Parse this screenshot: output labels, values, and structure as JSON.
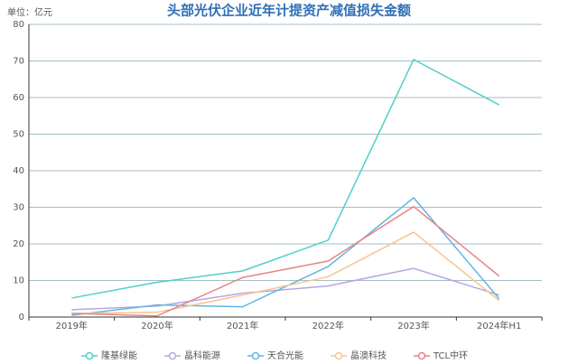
{
  "chart_data": {
    "type": "line",
    "title": "头部光伏企业近年计提资产减值损失金额",
    "y_axis_label": "单位：亿元",
    "categories": [
      "2019年",
      "2020年",
      "2021年",
      "2022年",
      "2023年",
      "2024年H1"
    ],
    "series": [
      {
        "name": "隆基绿能",
        "color": "#4fcfca",
        "values": [
          5.2,
          9.5,
          12.6,
          21,
          70.4,
          58
        ]
      },
      {
        "name": "晶科能源",
        "color": "#b7a6e0",
        "values": [
          2,
          3,
          6.5,
          8.5,
          13.3,
          6
        ]
      },
      {
        "name": "天合光能",
        "color": "#5fb6e3",
        "values": [
          0.5,
          3.3,
          2.8,
          13.8,
          32.6,
          5
        ]
      },
      {
        "name": "晶澳科技",
        "color": "#f8c48f",
        "values": [
          1,
          1.3,
          6,
          11,
          23.2,
          4.5
        ]
      },
      {
        "name": "TCL中环",
        "color": "#e78585",
        "values": [
          1,
          0.3,
          10.8,
          15.3,
          30.2,
          11.2
        ]
      }
    ],
    "ylim": [
      0,
      80
    ],
    "yticks": [
      0,
      10,
      20,
      30,
      40,
      50,
      60,
      70,
      80
    ],
    "grid": true,
    "legend": "bottom"
  }
}
